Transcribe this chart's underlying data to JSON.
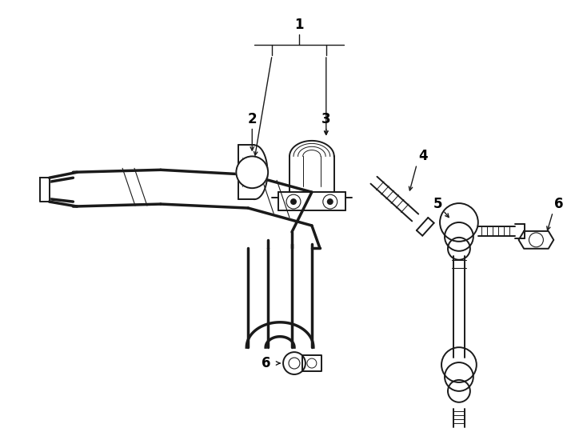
{
  "bg_color": "#ffffff",
  "line_color": "#1a1a1a",
  "label_color": "#000000",
  "figsize": [
    7.34,
    5.4
  ],
  "dpi": 100
}
